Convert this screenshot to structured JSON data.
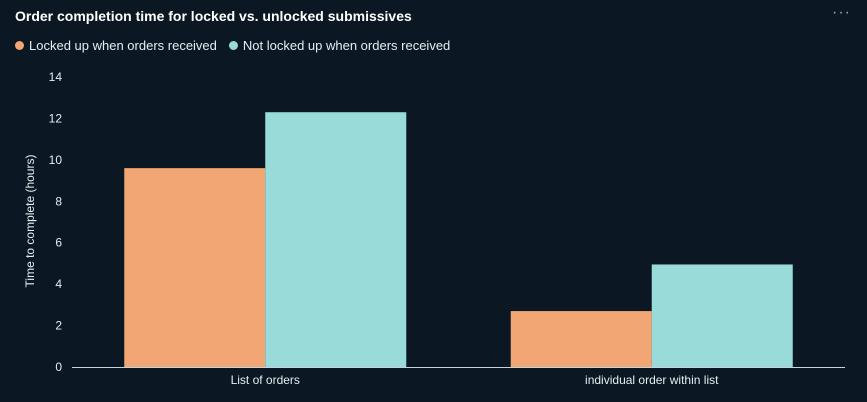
{
  "panel": {
    "title": "Order completion time for locked vs. unlocked submissives",
    "menu_icon": "more-horizontal-icon"
  },
  "colors": {
    "background": "#0b1823",
    "axis": "#c9d3da",
    "text": "#e6edf2"
  },
  "chart_data": {
    "type": "bar",
    "title": "Order completion time for locked vs. unlocked submissives",
    "xlabel": "",
    "ylabel": "Time to complete (hours)",
    "ylim": [
      0,
      14
    ],
    "yticks": [
      0,
      2,
      4,
      6,
      8,
      10,
      12,
      14
    ],
    "grid": false,
    "legend_position": "top-left",
    "categories": [
      "List of orders",
      "individual order within list"
    ],
    "series": [
      {
        "name": "Locked up when orders received",
        "color": "#f2a673",
        "values": [
          9.6,
          2.7
        ]
      },
      {
        "name": "Not locked up when orders received",
        "color": "#98dbd9",
        "values": [
          12.3,
          4.95
        ]
      }
    ]
  }
}
